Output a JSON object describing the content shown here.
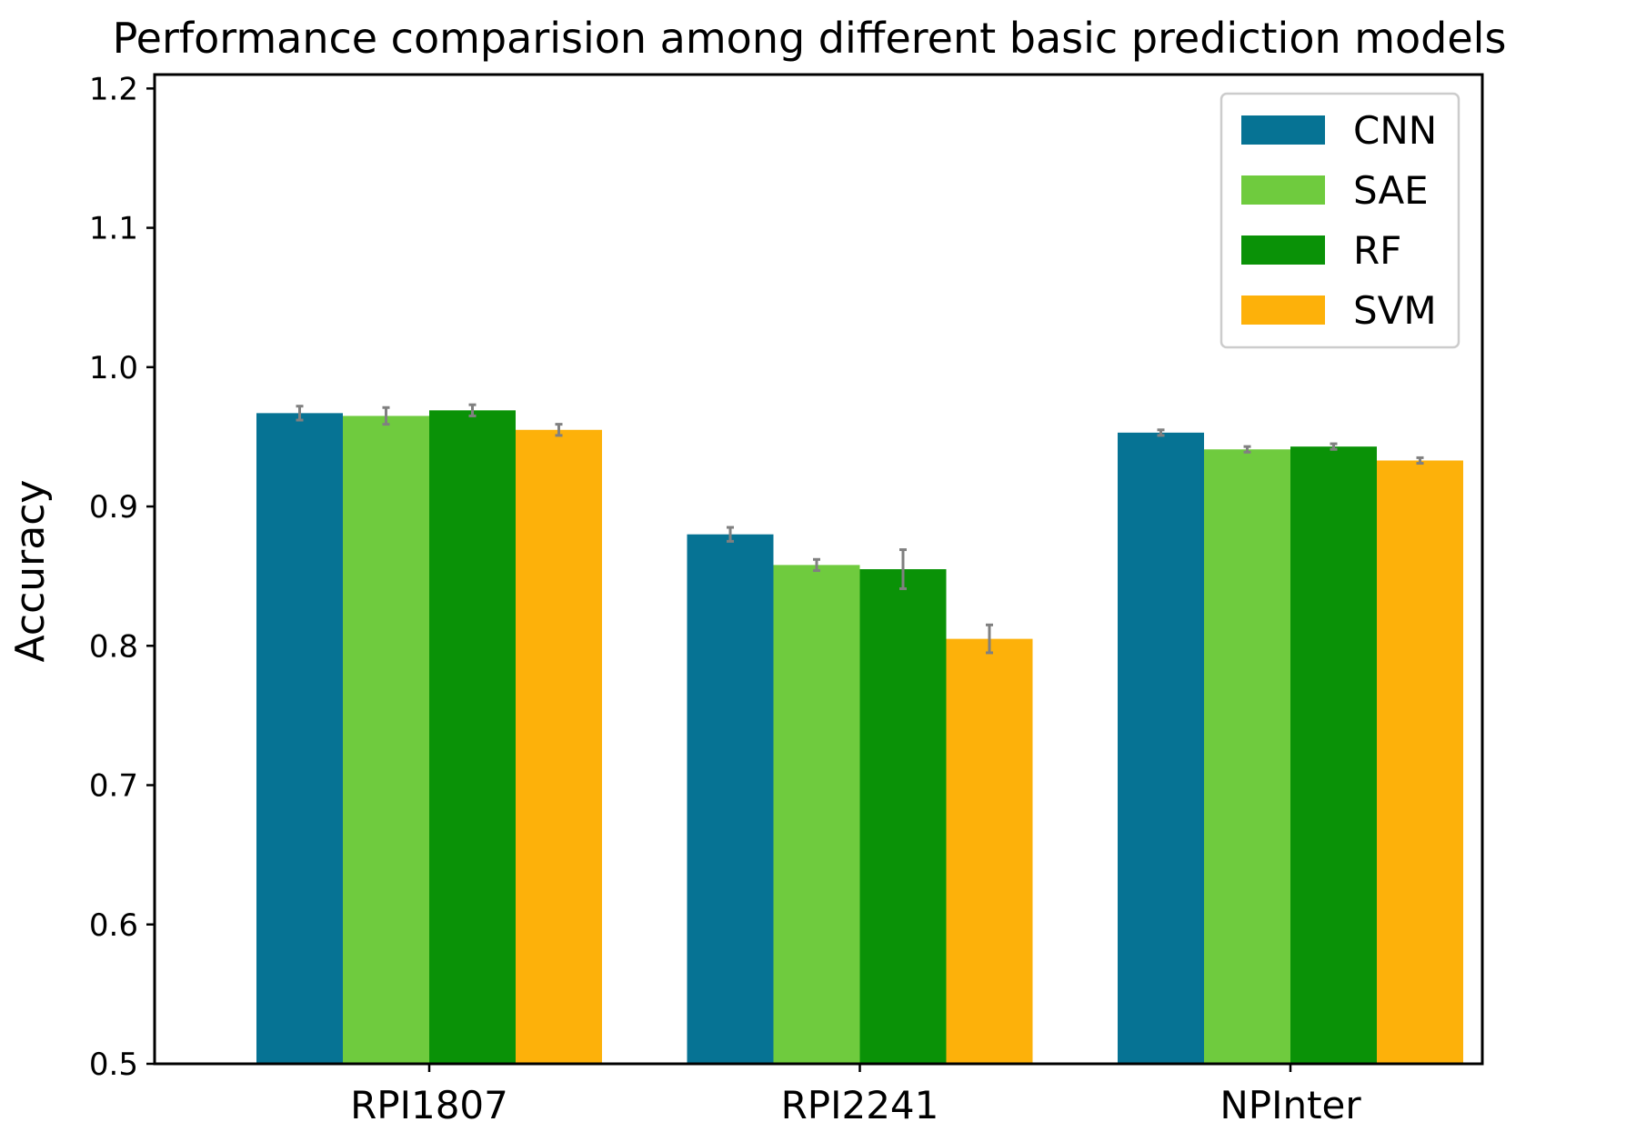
{
  "chart_data": {
    "type": "bar",
    "title": "Performance comparision among different basic prediction models",
    "xlabel": "",
    "ylabel": "Accuracy",
    "ylim": [
      0.5,
      1.21
    ],
    "yticks": [
      "0.5",
      "0.6",
      "0.7",
      "0.8",
      "0.9",
      "1.0",
      "1.1",
      "1.2"
    ],
    "categories": [
      "RPI1807",
      "RPI2241",
      "NPInter"
    ],
    "series": [
      {
        "name": "CNN",
        "color": "#067394",
        "values": [
          0.967,
          0.88,
          0.953
        ],
        "errors": [
          0.005,
          0.005,
          0.002
        ]
      },
      {
        "name": "SAE",
        "color": "#6fcb3e",
        "values": [
          0.965,
          0.858,
          0.941
        ],
        "errors": [
          0.006,
          0.004,
          0.002
        ]
      },
      {
        "name": "RF",
        "color": "#0a9207",
        "values": [
          0.969,
          0.855,
          0.943
        ],
        "errors": [
          0.004,
          0.014,
          0.002
        ]
      },
      {
        "name": "SVM",
        "color": "#fdb10a",
        "values": [
          0.955,
          0.805,
          0.933
        ],
        "errors": [
          0.004,
          0.01,
          0.002
        ]
      }
    ],
    "error_bar_color": "#808080",
    "legend_position": "top-right",
    "grid": false
  }
}
